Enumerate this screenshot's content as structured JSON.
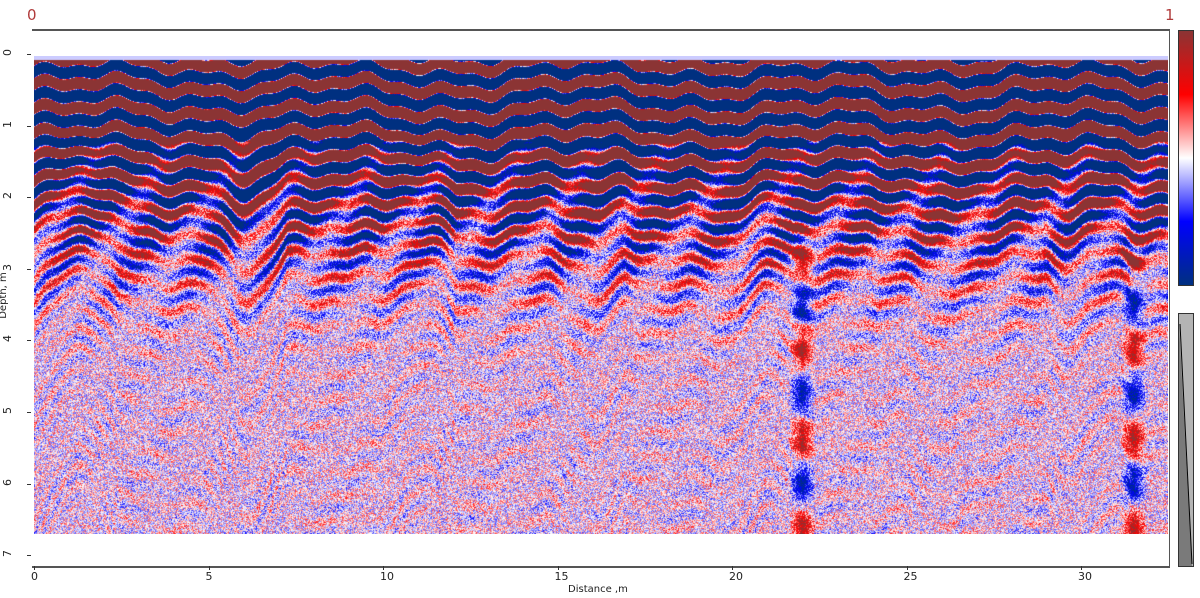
{
  "header": {
    "left_value": "0",
    "right_value": "1"
  },
  "chart_data": {
    "type": "heatmap",
    "title": "",
    "xlabel": "Distance ,m",
    "ylabel": "Depth, m",
    "xlim": [
      0,
      32.5
    ],
    "ylim": [
      0,
      7
    ],
    "data_depth_max": 6.7,
    "xticks": [
      "0",
      "5",
      "10",
      "15",
      "20",
      "25",
      "30"
    ],
    "xtick_values": [
      0,
      5,
      10,
      15,
      20,
      25,
      30
    ],
    "yticks": [
      "0",
      "1",
      "2",
      "3",
      "4",
      "5",
      "6",
      "7"
    ],
    "ytick_values": [
      0,
      1,
      2,
      3,
      4,
      5,
      6,
      7
    ],
    "colorbar": {
      "min_label": "0",
      "max_label": "1",
      "colors": [
        "#8b3434",
        "#ff0000",
        "#ffffff",
        "#0000ff",
        "#003080"
      ]
    },
    "strong_reflections_depth_range": [
      0.1,
      2.0
    ],
    "anomalies_x": [
      22,
      31.5
    ]
  }
}
